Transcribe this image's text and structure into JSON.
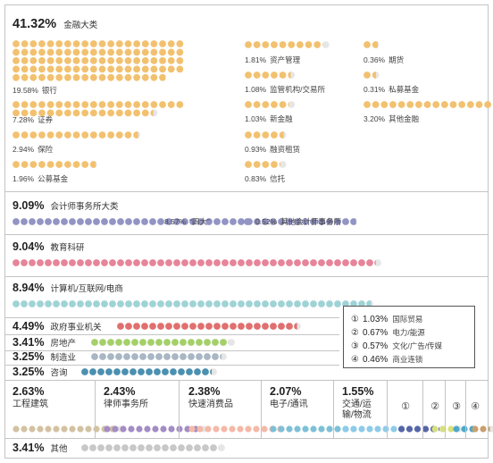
{
  "chart_data": {
    "type": "dot-matrix",
    "title": "",
    "categories": [
      {
        "id": "finance",
        "pct": "41.32%",
        "label": "金融大类",
        "color": "#f2c170",
        "sub": [
          {
            "id": "bank",
            "pct": "19.58%",
            "label": "银行",
            "value": 19.58
          },
          {
            "id": "asset",
            "pct": "1.81%",
            "label": "资产管理",
            "value": 1.81
          },
          {
            "id": "futures",
            "pct": "0.36%",
            "label": "期货",
            "value": 0.36
          },
          {
            "id": "regulator",
            "pct": "1.08%",
            "label": "监管机构/交易所",
            "value": 1.08
          },
          {
            "id": "private",
            "pct": "0.31%",
            "label": "私募基金",
            "value": 0.31
          },
          {
            "id": "securities",
            "pct": "7.28%",
            "label": "证券",
            "value": 7.28
          },
          {
            "id": "fintech",
            "pct": "1.03%",
            "label": "新金融",
            "value": 1.03
          },
          {
            "id": "otherfin",
            "pct": "3.20%",
            "label": "其他金融",
            "value": 3.2
          },
          {
            "id": "insurance",
            "pct": "2.94%",
            "label": "保险",
            "value": 2.94
          },
          {
            "id": "leasing",
            "pct": "0.93%",
            "label": "融资租赁",
            "value": 0.93
          },
          {
            "id": "fund",
            "pct": "1.96%",
            "label": "公募基金",
            "value": 1.96
          },
          {
            "id": "trust",
            "pct": "0.83%",
            "label": "信托",
            "value": 0.83
          }
        ]
      },
      {
        "id": "accounting",
        "pct": "9.09%",
        "label": "会计师事务所大类",
        "color": "#9294c4",
        "sub": [
          {
            "id": "big4",
            "pct": "8.57%",
            "label": "“四大”",
            "value": 8.57
          },
          {
            "id": "otheracc",
            "pct": "0.52%",
            "label": "其他会计师事务所",
            "value": 0.52
          }
        ]
      },
      {
        "id": "education",
        "pct": "9.04%",
        "label": "教育科研",
        "color": "#e6849a",
        "value": 9.04
      },
      {
        "id": "it",
        "pct": "8.94%",
        "label": "计算机/互联网/电商",
        "color": "#9fd3d6",
        "value": 8.94
      },
      {
        "id": "gov",
        "pct": "4.49%",
        "label": "政府事业机关",
        "color": "#e0706f",
        "value": 4.49
      },
      {
        "id": "realestate",
        "pct": "3.41%",
        "label": "房地产",
        "color": "#a5cf6a",
        "value": 3.41
      },
      {
        "id": "manufacturing",
        "pct": "3.25%",
        "label": "制造业",
        "color": "#a9b6c4",
        "value": 3.25
      },
      {
        "id": "consulting",
        "pct": "3.25%",
        "label": "咨询",
        "color": "#4c90b0",
        "value": 3.25
      },
      {
        "id": "construction",
        "pct": "2.63%",
        "label": "工程建筑",
        "color": "#d3c2a2",
        "value": 2.63
      },
      {
        "id": "law",
        "pct": "2.43%",
        "label": "律师事务所",
        "color": "#a48dc4",
        "value": 2.43
      },
      {
        "id": "fmcg",
        "pct": "2.38%",
        "label": "快速消费品",
        "color": "#f4b9a8",
        "value": 2.38
      },
      {
        "id": "electronics",
        "pct": "2.07%",
        "label": "电子/通讯",
        "color": "#7ec0d8",
        "value": 2.07
      },
      {
        "id": "transport",
        "pct": "1.55%",
        "label": "交通/运输/物流",
        "color": "#8ecbe8",
        "value": 1.55
      },
      {
        "id": "other",
        "pct": "3.41%",
        "label": "其他",
        "color": "#c8c8c8",
        "value": 3.41
      }
    ],
    "annotation": [
      {
        "num": "①",
        "pct": "1.03%",
        "label": "国际贸易",
        "value": 1.03,
        "color": "#5565a8"
      },
      {
        "num": "②",
        "pct": "0.67%",
        "label": "电力/能源",
        "value": 0.67,
        "color": "#d8e07a"
      },
      {
        "num": "③",
        "pct": "0.57%",
        "label": "文化/广告/传媒",
        "value": 0.57,
        "color": "#4fa8c8"
      },
      {
        "num": "④",
        "pct": "0.46%",
        "label": "商业连锁",
        "value": 0.46,
        "color": "#c8a070"
      }
    ],
    "transport_label_lines": [
      "交通/运",
      "输/物流"
    ]
  }
}
